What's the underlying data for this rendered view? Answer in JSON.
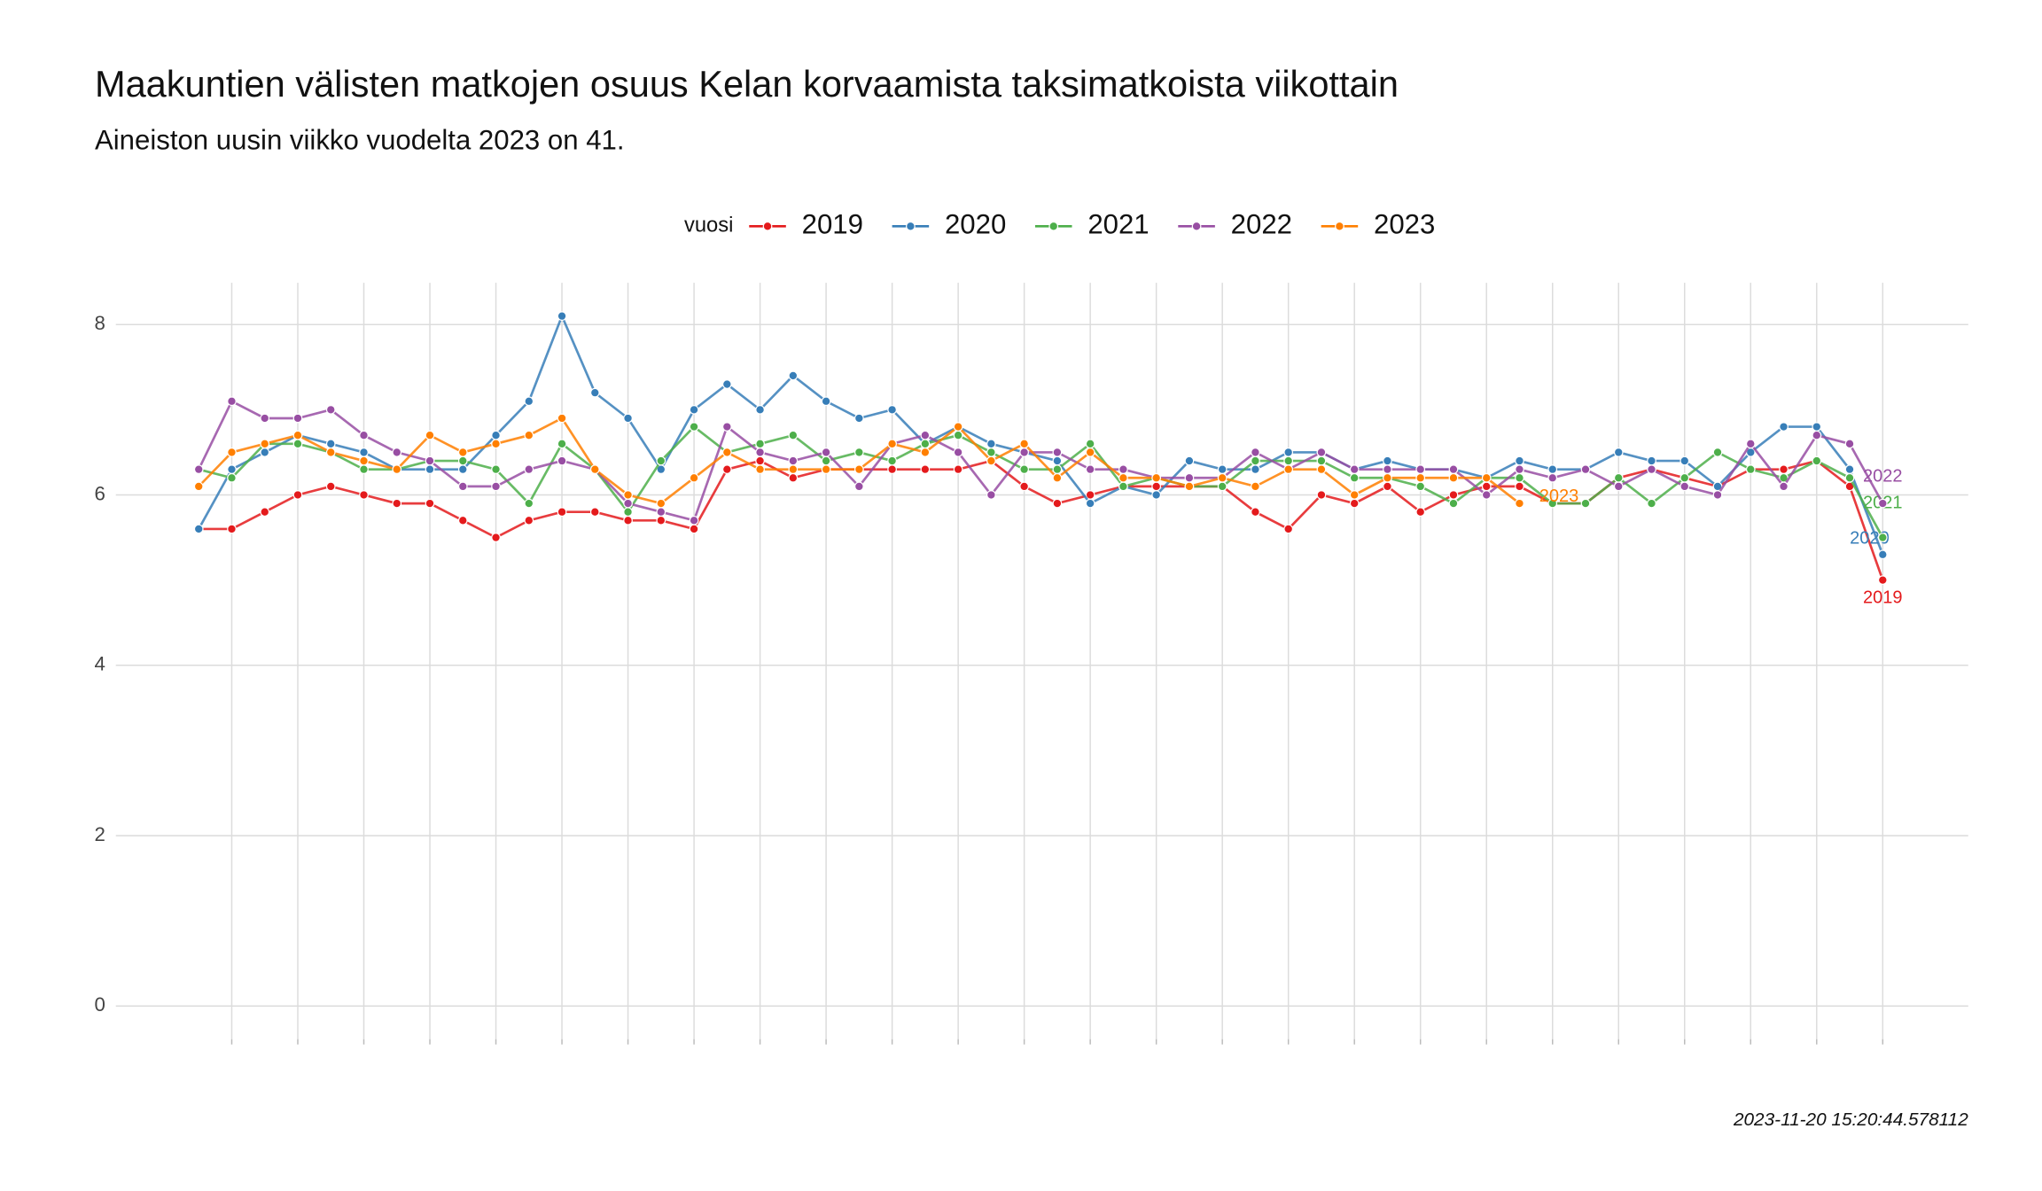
{
  "chart_data": {
    "type": "line",
    "title": "Maakuntien välisten matkojen osuus Kelan korvaamista taksimatkoista viikottain",
    "subtitle": "Aineiston uusin viikko vuodelta 2023 on 41.",
    "caption": "2023-11-20 15:20:44.578112",
    "legend_title": "vuosi",
    "legend_position": "top",
    "grid": true,
    "x": [
      1,
      2,
      3,
      4,
      5,
      6,
      7,
      8,
      9,
      10,
      11,
      12,
      13,
      14,
      15,
      16,
      17,
      18,
      19,
      20,
      21,
      22,
      23,
      24,
      25,
      26,
      27,
      28,
      29,
      30,
      31,
      32,
      33,
      34,
      35,
      36,
      37,
      38,
      39,
      40,
      41,
      42,
      43,
      44,
      45,
      46,
      47,
      48,
      49,
      50,
      51,
      52
    ],
    "xlim": [
      -1.51,
      54.59
    ],
    "xticks": [
      2,
      4,
      6,
      8,
      10,
      12,
      14,
      16,
      18,
      20,
      22,
      24,
      26,
      28,
      30,
      32,
      34,
      36,
      38,
      40,
      42,
      44,
      46,
      48,
      50,
      52
    ],
    "ylim": [
      -0.39,
      8.49
    ],
    "yticks": [
      0,
      2,
      4,
      6,
      8
    ],
    "series": [
      {
        "name": "2019",
        "color": "#e41a1c",
        "values": [
          5.6,
          5.6,
          5.8,
          6.0,
          6.1,
          6.0,
          5.9,
          5.9,
          5.7,
          5.5,
          5.7,
          5.8,
          5.8,
          5.7,
          5.7,
          5.6,
          6.3,
          6.4,
          6.2,
          6.3,
          6.3,
          6.3,
          6.3,
          6.3,
          6.4,
          6.1,
          5.9,
          6.0,
          6.1,
          6.1,
          6.1,
          6.1,
          5.8,
          5.6,
          6.0,
          5.9,
          6.1,
          5.8,
          6.0,
          6.1,
          6.1,
          5.9,
          5.9,
          6.2,
          6.3,
          6.2,
          6.1,
          6.3,
          6.3,
          6.4,
          6.1,
          5.0
        ]
      },
      {
        "name": "2020",
        "color": "#377eb8",
        "values": [
          5.6,
          6.3,
          6.5,
          6.7,
          6.6,
          6.5,
          6.3,
          6.3,
          6.3,
          6.7,
          7.1,
          8.1,
          7.2,
          6.9,
          6.3,
          7.0,
          7.3,
          7.0,
          7.4,
          7.1,
          6.9,
          7.0,
          6.6,
          6.8,
          6.6,
          6.5,
          6.4,
          5.9,
          6.1,
          6.0,
          6.4,
          6.3,
          6.3,
          6.5,
          6.5,
          6.3,
          6.4,
          6.3,
          6.3,
          6.2,
          6.4,
          6.3,
          6.3,
          6.5,
          6.4,
          6.4,
          6.1,
          6.5,
          6.8,
          6.8,
          6.3,
          5.3
        ]
      },
      {
        "name": "2021",
        "color": "#4daf4a",
        "values": [
          6.3,
          6.2,
          6.6,
          6.6,
          6.5,
          6.3,
          6.3,
          6.4,
          6.4,
          6.3,
          5.9,
          6.6,
          6.3,
          5.8,
          6.4,
          6.8,
          6.5,
          6.6,
          6.7,
          6.4,
          6.5,
          6.4,
          6.6,
          6.7,
          6.5,
          6.3,
          6.3,
          6.6,
          6.1,
          6.2,
          6.1,
          6.1,
          6.4,
          6.4,
          6.4,
          6.2,
          6.2,
          6.1,
          5.9,
          6.2,
          6.2,
          5.9,
          5.9,
          6.2,
          5.9,
          6.2,
          6.5,
          6.3,
          6.2,
          6.4,
          6.2,
          5.5
        ]
      },
      {
        "name": "2022",
        "color": "#984ea3",
        "values": [
          6.3,
          7.1,
          6.9,
          6.9,
          7.0,
          6.7,
          6.5,
          6.4,
          6.1,
          6.1,
          6.3,
          6.4,
          6.3,
          5.9,
          5.8,
          5.7,
          6.8,
          6.5,
          6.4,
          6.5,
          6.1,
          6.6,
          6.7,
          6.5,
          6.0,
          6.5,
          6.5,
          6.3,
          6.3,
          6.2,
          6.2,
          6.2,
          6.5,
          6.3,
          6.5,
          6.3,
          6.3,
          6.3,
          6.3,
          6.0,
          6.3,
          6.2,
          6.3,
          6.1,
          6.3,
          6.1,
          6.0,
          6.6,
          6.1,
          6.7,
          6.6,
          5.9
        ]
      },
      {
        "name": "2023",
        "color": "#ff7f00",
        "values": [
          6.1,
          6.5,
          6.6,
          6.7,
          6.5,
          6.4,
          6.3,
          6.7,
          6.5,
          6.6,
          6.7,
          6.9,
          6.3,
          6.0,
          5.9,
          6.2,
          6.5,
          6.3,
          6.3,
          6.3,
          6.3,
          6.6,
          6.5,
          6.8,
          6.4,
          6.6,
          6.2,
          6.5,
          6.2,
          6.2,
          6.1,
          6.2,
          6.1,
          6.3,
          6.3,
          6.0,
          6.2,
          6.2,
          6.2,
          6.2,
          5.9,
          null,
          null,
          null,
          null,
          null,
          null,
          null,
          null,
          null,
          null,
          null
        ]
      }
    ]
  }
}
